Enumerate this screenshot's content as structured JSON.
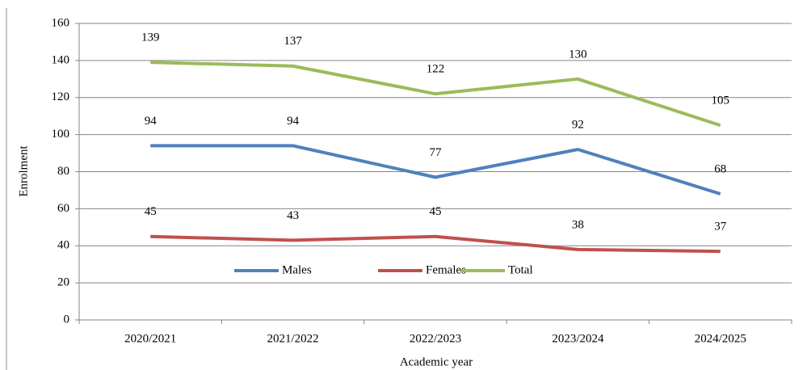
{
  "chart_data": {
    "type": "line",
    "x_label": "Academic year",
    "y_label": "Enrolment",
    "categories": [
      "2020/2021",
      "2021/2022",
      "2022/2023",
      "2023/2024",
      "2024/2025"
    ],
    "series": [
      {
        "name": "Males",
        "color": "#4f81bd",
        "values": [
          94,
          94,
          77,
          92,
          68
        ]
      },
      {
        "name": "Females",
        "color": "#c0504d",
        "values": [
          45,
          43,
          45,
          38,
          37
        ]
      },
      {
        "name": "Total",
        "color": "#9bbb59",
        "values": [
          139,
          137,
          122,
          130,
          105
        ]
      }
    ],
    "ylim": [
      0,
      160
    ],
    "yticks": [
      0,
      20,
      40,
      60,
      80,
      100,
      120,
      140,
      160
    ],
    "grid": true,
    "legend": "inside-bottom-center"
  }
}
